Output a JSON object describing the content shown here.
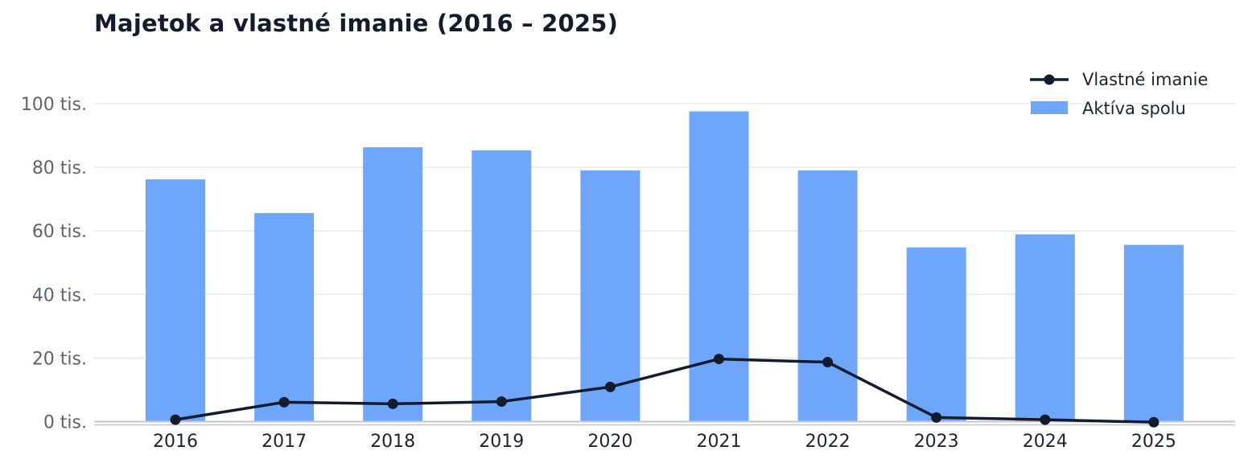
{
  "chart_data": {
    "type": "bar",
    "title": "Majetok a vlastné imanie (2016 – 2025)",
    "xlabel": "",
    "ylabel": "",
    "categories": [
      "2016",
      "2017",
      "2018",
      "2019",
      "2020",
      "2021",
      "2022",
      "2023",
      "2024",
      "2025"
    ],
    "series": [
      {
        "name": "Aktíva spolu",
        "kind": "bar",
        "color": "#6ea6fc",
        "values": [
          76200,
          65600,
          86300,
          85300,
          79000,
          97600,
          79000,
          54800,
          58900,
          55600
        ]
      },
      {
        "name": "Vlastné imanie",
        "kind": "line",
        "color": "#131c2e",
        "values": [
          600,
          6100,
          5600,
          6300,
          10900,
          19700,
          18700,
          1300,
          600,
          -200
        ]
      }
    ],
    "ylim": [
      0,
      100000
    ],
    "yticks": [
      0,
      20000,
      40000,
      60000,
      80000,
      100000
    ],
    "ytick_labels": [
      "0 tis.",
      "20 tis.",
      "40 tis.",
      "60 tis.",
      "80 tis.",
      "100 tis."
    ],
    "grid": true,
    "legend_position": "top-right"
  }
}
